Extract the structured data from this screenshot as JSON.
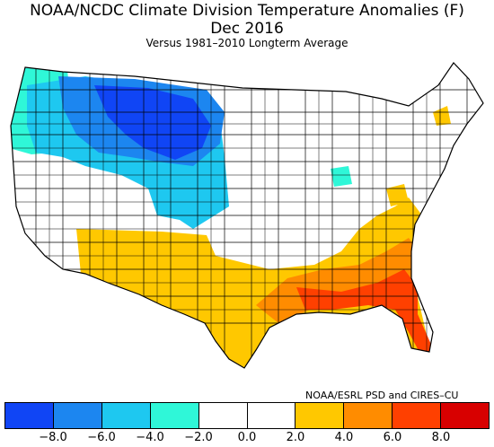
{
  "title": "NOAA/NCDC Climate Division Temperature Anomalies (F)",
  "period": "Dec 2016",
  "subtitle": "Versus 1981–2010 Longterm Average",
  "credit": "NOAA/ESRL PSD and CIRES–CU",
  "legend": {
    "colors": [
      "#1045f5",
      "#1c86f0",
      "#1ec8f0",
      "#2ff7d8",
      "#ffffff",
      "#ffffff",
      "#ffc800",
      "#ff8c00",
      "#ff4000",
      "#d80000"
    ],
    "ticks": [
      "−8.0",
      "−6.0",
      "−4.0",
      "−2.0",
      "0.0",
      "2.0",
      "4.0",
      "6.0",
      "8.0"
    ]
  },
  "map_colors": {
    "cold_strong": "#1045f5",
    "cold": "#1c86f0",
    "cool": "#1ec8f0",
    "cool_light": "#2ff7d8",
    "neutral": "#ffffff",
    "warm": "#ffc800",
    "warmer": "#ff8c00",
    "hot": "#ff4000"
  }
}
